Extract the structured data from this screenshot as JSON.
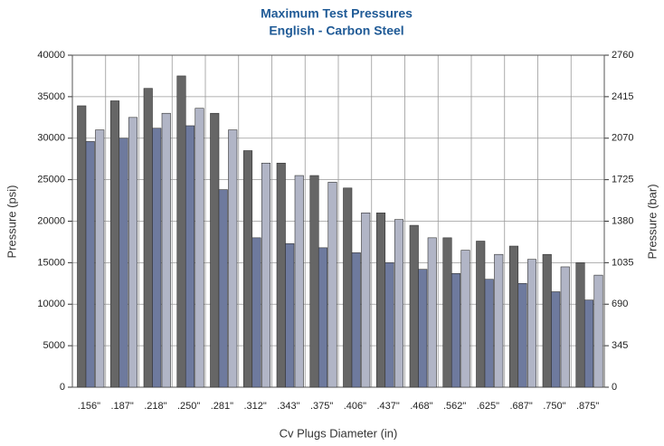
{
  "chart_data": {
    "type": "bar",
    "title": "Maximum Test Pressures",
    "subtitle": "English - Carbon Steel",
    "x_label": "Cv Plugs Diameter (in)",
    "y_label": "Pressure (psi)",
    "y2_label": "Pressure (bar)",
    "categories": [
      ".156\"",
      ".187\"",
      ".218\"",
      ".250\"",
      ".281\"",
      ".312\"",
      ".343\"",
      ".375\"",
      ".406\"",
      ".437\"",
      ".468\"",
      ".562\"",
      ".625\"",
      ".687\"",
      ".750\"",
      ".875\""
    ],
    "series": [
      {
        "color": "#666666",
        "values": [
          33900,
          34500,
          36000,
          37500,
          33000,
          28500,
          27000,
          25500,
          24000,
          21000,
          19500,
          18000,
          17600,
          17000,
          16000,
          15000
        ]
      },
      {
        "color": "#6e7a9e",
        "values": [
          29600,
          30000,
          31200,
          31500,
          23800,
          18000,
          17300,
          16800,
          16200,
          15000,
          14200,
          13700,
          13000,
          12500,
          11500,
          10500
        ]
      },
      {
        "color": "#b1b5c6",
        "values": [
          31000,
          32500,
          33000,
          33600,
          31000,
          27000,
          25500,
          24700,
          21000,
          20200,
          18000,
          16500,
          16000,
          15400,
          14500,
          13500
        ]
      }
    ],
    "ylim": [
      0,
      40000
    ],
    "yticks": [
      0,
      5000,
      10000,
      15000,
      20000,
      25000,
      30000,
      35000,
      40000
    ],
    "y2lim": [
      0,
      2760
    ],
    "y2ticks": [
      0,
      345,
      690,
      1035,
      1380,
      1725,
      2070,
      2415,
      2760
    ],
    "grid": true
  }
}
